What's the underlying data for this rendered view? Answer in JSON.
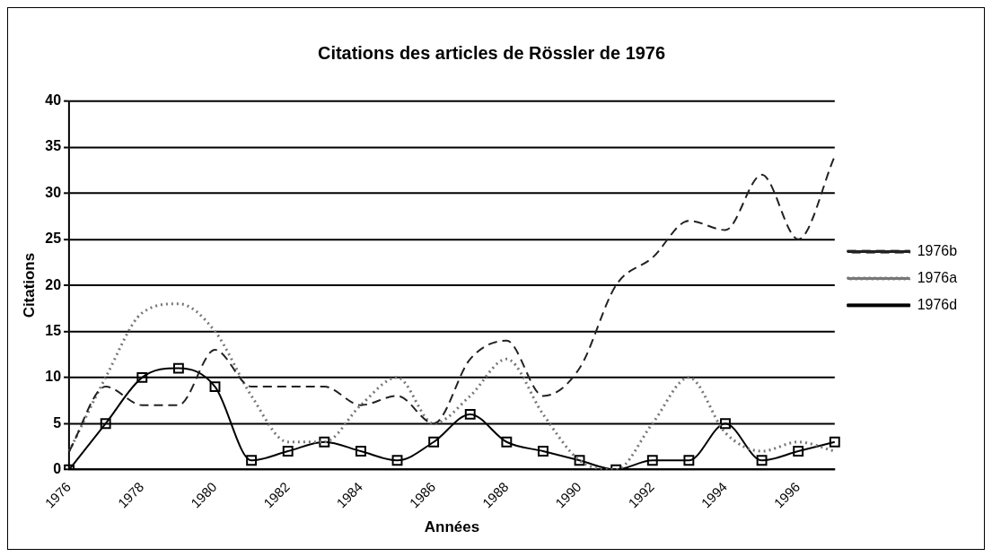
{
  "chart_data": {
    "type": "line",
    "title": "Citations des articles de Rössler de 1976",
    "xlabel": "Années",
    "ylabel": "Citations",
    "categories": [
      "1976",
      null,
      "1978",
      null,
      "1980",
      null,
      "1982",
      null,
      "1984",
      null,
      "1986",
      null,
      "1988",
      null,
      "1990",
      null,
      "1992",
      null,
      "1994",
      null,
      "1996",
      null
    ],
    "series": [
      {
        "name": "1976b",
        "color": "#222222",
        "line_style": "dashed",
        "marker": "none",
        "values": [
          2,
          9,
          7,
          7,
          13,
          9,
          9,
          9,
          7,
          8,
          5,
          12,
          14,
          8,
          11,
          20,
          23,
          27,
          26,
          32,
          25,
          34
        ]
      },
      {
        "name": "1976a",
        "color": "#777777",
        "line_style": "dotted",
        "marker": "none",
        "values": [
          2,
          10,
          17,
          18,
          15,
          8,
          3,
          3,
          7,
          10,
          5,
          8,
          12,
          6,
          1,
          0,
          5,
          10,
          4,
          2,
          3,
          2
        ]
      },
      {
        "name": "1976d",
        "color": "#000000",
        "line_style": "solid",
        "marker": "square",
        "values": [
          0,
          5,
          10,
          11,
          9,
          1,
          2,
          3,
          2,
          1,
          3,
          6,
          3,
          2,
          1,
          0,
          1,
          1,
          5,
          1,
          2,
          3
        ]
      }
    ],
    "ylim": [
      0,
      40
    ],
    "yticks": [
      0,
      5,
      10,
      15,
      20,
      25,
      30,
      35,
      40
    ],
    "grid": "y",
    "legend": "right"
  }
}
